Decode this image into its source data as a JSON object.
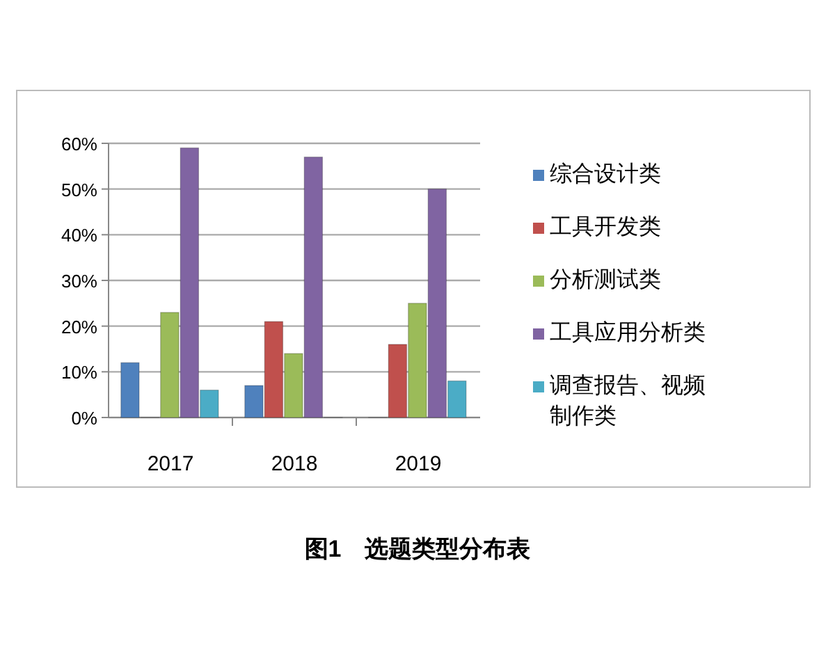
{
  "chart_data": {
    "type": "bar",
    "title": "图1　选题类型分布表",
    "categories": [
      "2017",
      "2018",
      "2019"
    ],
    "series": [
      {
        "name": "综合设计类",
        "color": "#4f81bd",
        "values": [
          12,
          7,
          0
        ]
      },
      {
        "name": "工具开发类",
        "color": "#c0504d",
        "values": [
          0,
          21,
          16
        ]
      },
      {
        "name": "分析测试类",
        "color": "#9bbb59",
        "values": [
          23,
          14,
          25
        ]
      },
      {
        "name": "工具应用分析类",
        "color": "#8064a2",
        "values": [
          59,
          57,
          50
        ]
      },
      {
        "name": "调查报告、视频制作类",
        "color": "#4bacc6",
        "values": [
          6,
          0,
          8
        ]
      }
    ],
    "ylim": [
      0,
      60
    ],
    "yticks": [
      {
        "value": 0,
        "label": "0%"
      },
      {
        "value": 10,
        "label": "10%"
      },
      {
        "value": 20,
        "label": "20%"
      },
      {
        "value": 30,
        "label": "30%"
      },
      {
        "value": 40,
        "label": "40%"
      },
      {
        "value": 50,
        "label": "50%"
      },
      {
        "value": 60,
        "label": "60%"
      }
    ],
    "grid": "y",
    "legend": "right"
  }
}
